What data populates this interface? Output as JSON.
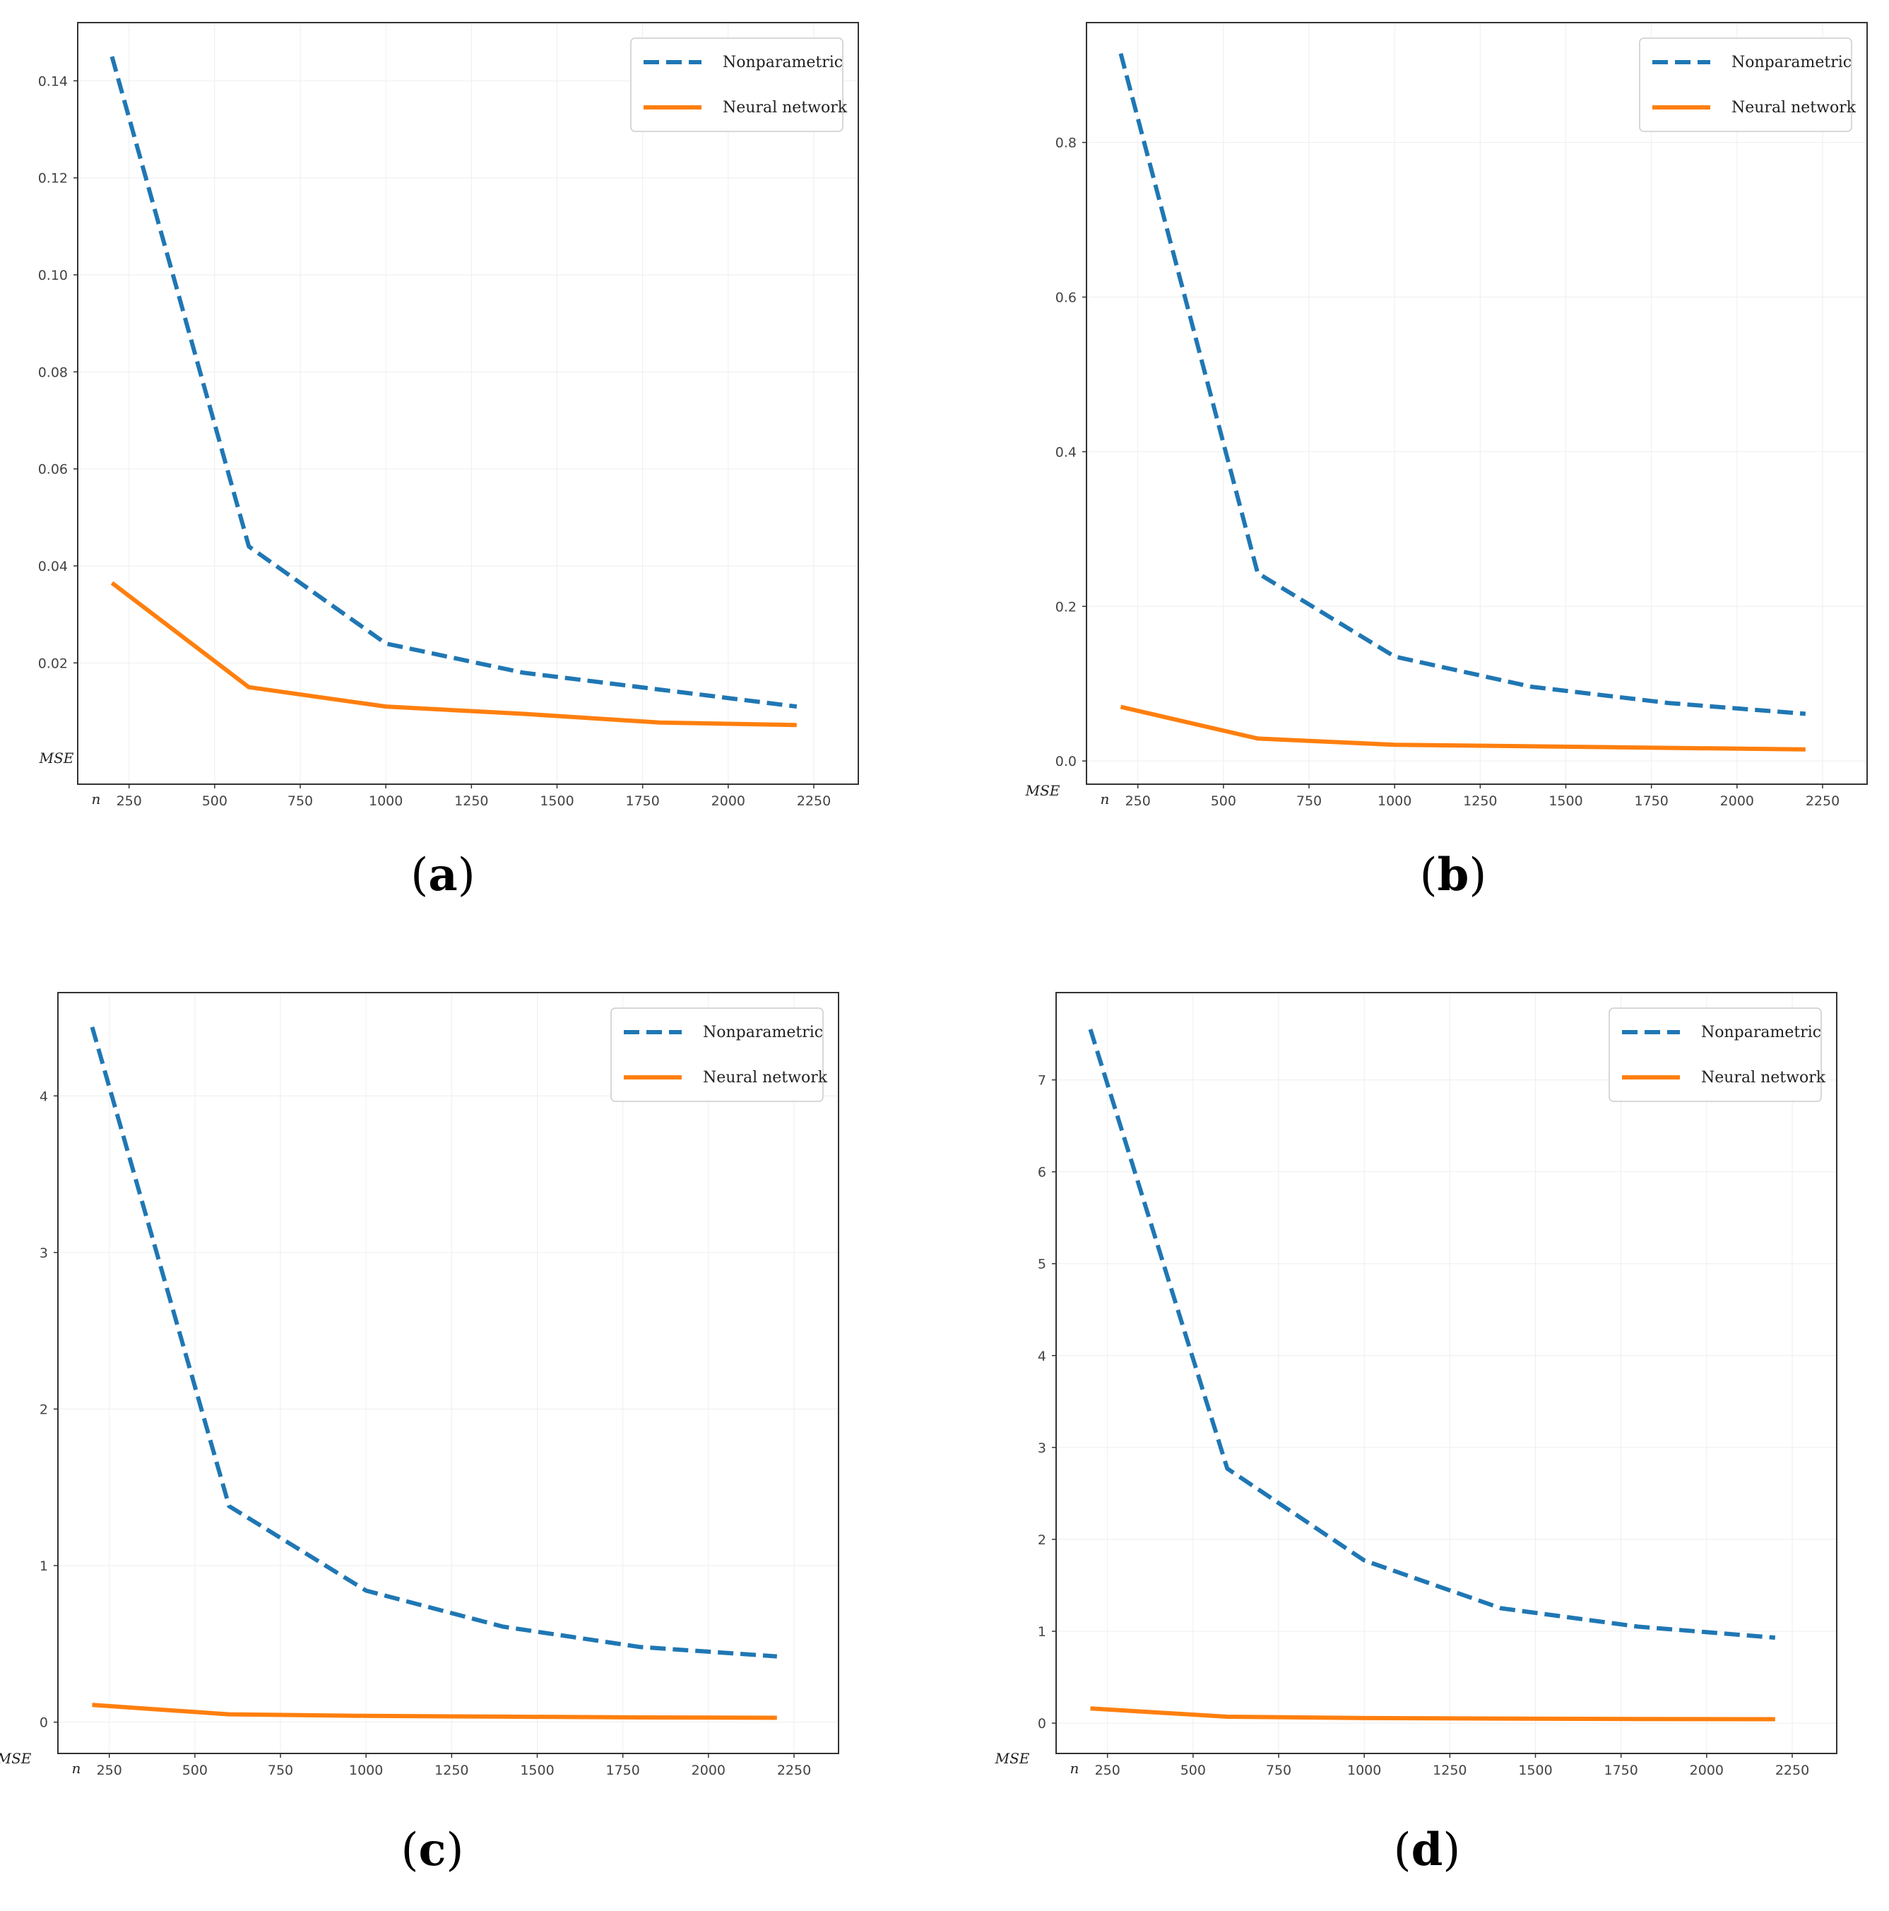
{
  "colors": {
    "nonparametric": "#1f77b4",
    "neural": "#ff7f0e",
    "frame": "#333333",
    "legend_border": "#cccccc",
    "grid": "#eeeeee"
  },
  "chart_data": [
    {
      "type": "line",
      "panel_label": "a",
      "xlabel": "n",
      "ylabel": "MSE",
      "xlim": [
        100,
        2380
      ],
      "ylim": [
        -0.005,
        0.152
      ],
      "xticks": [
        250,
        500,
        750,
        1000,
        1250,
        1500,
        1750,
        2000,
        2250
      ],
      "yticks": [
        0.02,
        0.04,
        0.06,
        0.08,
        0.1,
        0.12,
        0.14
      ],
      "ytick_labels": [
        "0.02",
        "0.04",
        "0.06",
        "0.08",
        "0.10",
        "0.12",
        "0.14"
      ],
      "x": [
        200,
        600,
        1000,
        1400,
        1800,
        2200
      ],
      "legend_position": "top-right",
      "series": [
        {
          "name": "Nonparametric",
          "style": "dashed",
          "values": [
            0.145,
            0.044,
            0.024,
            0.018,
            0.0145,
            0.011
          ]
        },
        {
          "name": "Neural network",
          "style": "solid",
          "values": [
            0.0365,
            0.015,
            0.011,
            0.0095,
            0.0077,
            0.0072
          ]
        }
      ]
    },
    {
      "type": "line",
      "panel_label": "b",
      "xlabel": "n",
      "ylabel": "MSE",
      "xlim": [
        100,
        2380
      ],
      "ylim": [
        -0.03,
        0.955
      ],
      "xticks": [
        250,
        500,
        750,
        1000,
        1250,
        1500,
        1750,
        2000,
        2250
      ],
      "yticks": [
        0.0,
        0.2,
        0.4,
        0.6,
        0.8
      ],
      "ytick_labels": [
        "0.0",
        "0.2",
        "0.4",
        "0.6",
        "0.8"
      ],
      "x": [
        200,
        600,
        1000,
        1400,
        1800,
        2200
      ],
      "legend_position": "top-right",
      "series": [
        {
          "name": "Nonparametric",
          "style": "dashed",
          "values": [
            0.915,
            0.243,
            0.135,
            0.096,
            0.075,
            0.061
          ]
        },
        {
          "name": "Neural network",
          "style": "solid",
          "values": [
            0.07,
            0.029,
            0.021,
            0.019,
            0.017,
            0.015
          ]
        }
      ]
    },
    {
      "type": "line",
      "panel_label": "c",
      "xlabel": "n",
      "ylabel": "MSE",
      "xlim": [
        100,
        2380
      ],
      "ylim": [
        -0.2,
        4.66
      ],
      "xticks": [
        250,
        500,
        750,
        1000,
        1250,
        1500,
        1750,
        2000,
        2250
      ],
      "yticks": [
        0,
        1,
        2,
        3,
        4
      ],
      "ytick_labels": [
        "0",
        "1",
        "2",
        "3",
        "4"
      ],
      "x": [
        200,
        600,
        1000,
        1400,
        1800,
        2200
      ],
      "legend_position": "top-right",
      "series": [
        {
          "name": "Nonparametric",
          "style": "dashed",
          "values": [
            4.44,
            1.38,
            0.84,
            0.61,
            0.48,
            0.42
          ]
        },
        {
          "name": "Neural network",
          "style": "solid",
          "values": [
            0.11,
            0.05,
            0.04,
            0.035,
            0.03,
            0.028
          ]
        }
      ]
    },
    {
      "type": "line",
      "panel_label": "d",
      "xlabel": "n",
      "ylabel": "MSE",
      "xlim": [
        100,
        2380
      ],
      "ylim": [
        -0.33,
        7.95
      ],
      "xticks": [
        250,
        500,
        750,
        1000,
        1250,
        1500,
        1750,
        2000,
        2250
      ],
      "yticks": [
        0,
        1,
        2,
        3,
        4,
        5,
        6,
        7
      ],
      "ytick_labels": [
        "0",
        "1",
        "2",
        "3",
        "4",
        "5",
        "6",
        "7"
      ],
      "x": [
        200,
        600,
        1000,
        1400,
        1800,
        2200
      ],
      "legend_position": "top-right",
      "series": [
        {
          "name": "Nonparametric",
          "style": "dashed",
          "values": [
            7.55,
            2.77,
            1.77,
            1.25,
            1.05,
            0.93
          ]
        },
        {
          "name": "Neural network",
          "style": "solid",
          "values": [
            0.16,
            0.07,
            0.055,
            0.05,
            0.045,
            0.043
          ]
        }
      ]
    }
  ]
}
